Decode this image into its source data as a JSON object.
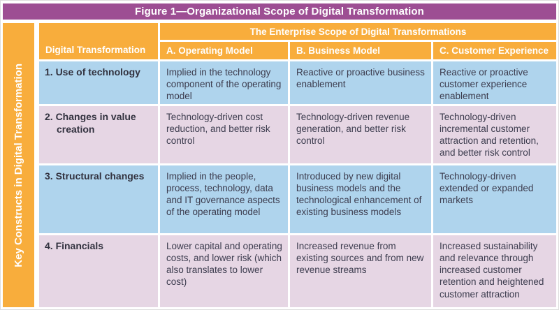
{
  "figure": {
    "title": "Figure 1—Organizational Scope of Digital Transformation",
    "sidebar_label": "Key Constructs in Digital Transformation",
    "enterprise_header": "The Enterprise Scope of Digital Transformations",
    "row_axis_header": "Digital Transformation",
    "columns": [
      "A. Operating Model",
      "B. Business Model",
      "C. Customer Experience"
    ],
    "rows": [
      {
        "label": "1. Use of technology",
        "cells": [
          "Implied in the technology component of the operating model",
          "Reactive or proactive business enablement",
          "Reactive or proactive customer experience enablement"
        ]
      },
      {
        "label": "2. Changes in value creation",
        "cells": [
          "Technology-driven cost reduction, and better risk control",
          "Technology-driven revenue generation, and better risk control",
          "Technology-driven incremental customer attraction and retention, and better risk control"
        ]
      },
      {
        "label": "3. Structural changes",
        "cells": [
          "Implied in the people, process, technology, data and IT governance aspects of the operating model",
          "Introduced by new digital business models and the technological enhancement of existing business models",
          "Technology-driven extended or expanded markets"
        ]
      },
      {
        "label": "4. Financials",
        "cells": [
          "Lower capital and operating costs, and lower risk (which also translates to lower cost)",
          "Increased revenue from existing sources and from new revenue streams",
          "Increased sustainability and relevance through increased customer retention and heightened customer attraction"
        ]
      }
    ],
    "colors": {
      "title_bar_bg": "#9D4E93",
      "header_bg": "#F8AD3C",
      "sidebar_bg": "#F8AD3C",
      "row_alt_blue": "#AFD4ED",
      "row_alt_mauve": "#E6D6E4",
      "header_text": "#FFFFFF",
      "body_text": "#3C3C4E"
    }
  }
}
